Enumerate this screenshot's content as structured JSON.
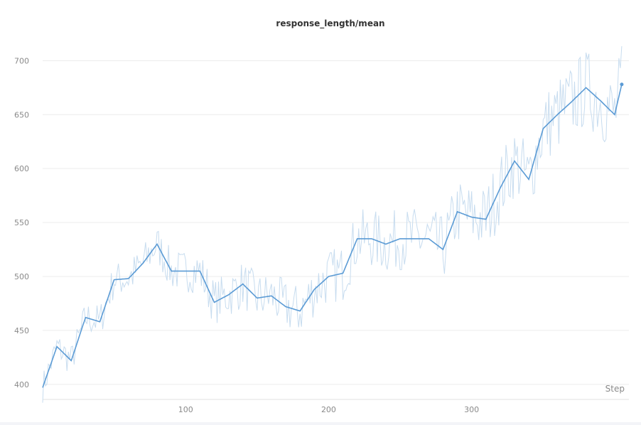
{
  "chart_data": {
    "type": "line",
    "title": "response_length/mean",
    "xlabel": "Step",
    "ylabel": "",
    "xlim": [
      0,
      410
    ],
    "ylim": [
      390,
      720
    ],
    "xticks": [
      100,
      200,
      300
    ],
    "yticks": [
      400,
      450,
      500,
      550,
      600,
      650,
      700
    ],
    "grid": true,
    "colors": {
      "smoothed": "#5b9bd5",
      "raw": "#c7dcef"
    },
    "series": [
      {
        "x": [
          0,
          10,
          20,
          30,
          40,
          50,
          60,
          70,
          80,
          90,
          100,
          110,
          120,
          130,
          140,
          150,
          160,
          170,
          180,
          190,
          200,
          210,
          220,
          230,
          240,
          250,
          260,
          270,
          280,
          290,
          300,
          310,
          320,
          330,
          340,
          350,
          360,
          370,
          380,
          390,
          400,
          405
        ],
        "y": [
          397,
          435,
          422,
          462,
          458,
          497,
          498,
          512,
          530,
          505,
          505,
          505,
          476,
          483,
          493,
          480,
          482,
          472,
          468,
          488,
          500,
          503,
          535,
          535,
          530,
          535,
          535,
          535,
          525,
          560,
          555,
          553,
          582,
          607,
          590,
          637,
          650,
          662,
          675,
          663,
          650,
          678
        ]
      }
    ]
  }
}
